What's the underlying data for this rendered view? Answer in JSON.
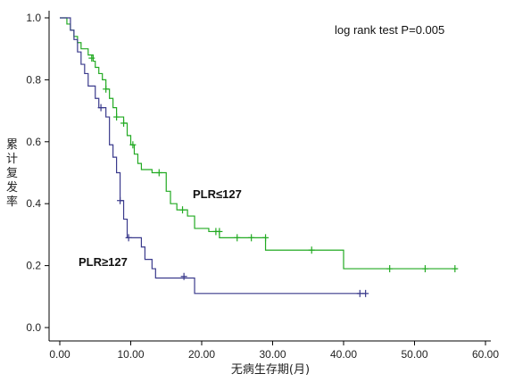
{
  "chart_data": {
    "type": "line",
    "subtype": "kaplan-meier step",
    "title": "",
    "xlabel": "无病生存期(月)",
    "ylabel": "累计复发率",
    "xlim": [
      0,
      60
    ],
    "ylim": [
      0,
      1.0
    ],
    "x_ticks": [
      "0.00",
      "10.00",
      "20.00",
      "30.00",
      "40.00",
      "50.00",
      "60.00"
    ],
    "y_ticks": [
      "0.0",
      "0.2",
      "0.4",
      "0.6",
      "0.8",
      "1.0"
    ],
    "grid": false,
    "annotation": "log rank test P=0.005",
    "series": [
      {
        "name": "PLR≤127",
        "color": "#22aa22",
        "label_text": "PLR≤127",
        "steps": [
          [
            0,
            1.0
          ],
          [
            1,
            0.98
          ],
          [
            1.5,
            0.96
          ],
          [
            2,
            0.94
          ],
          [
            2.5,
            0.92
          ],
          [
            3,
            0.9
          ],
          [
            4,
            0.88
          ],
          [
            4.7,
            0.86
          ],
          [
            5,
            0.84
          ],
          [
            5.5,
            0.82
          ],
          [
            6,
            0.8
          ],
          [
            6.5,
            0.77
          ],
          [
            7,
            0.74
          ],
          [
            7.5,
            0.71
          ],
          [
            8,
            0.68
          ],
          [
            9,
            0.66
          ],
          [
            9.5,
            0.62
          ],
          [
            10,
            0.59
          ],
          [
            10.5,
            0.56
          ],
          [
            11,
            0.53
          ],
          [
            11.5,
            0.51
          ],
          [
            13,
            0.5
          ],
          [
            15,
            0.44
          ],
          [
            15.6,
            0.4
          ],
          [
            16.5,
            0.38
          ],
          [
            18,
            0.36
          ],
          [
            19,
            0.32
          ],
          [
            21,
            0.31
          ],
          [
            22.5,
            0.29
          ],
          [
            29,
            0.25
          ],
          [
            40,
            0.19
          ],
          [
            56,
            0.19
          ]
        ],
        "censored": [
          [
            4.5,
            0.87
          ],
          [
            6.5,
            0.77
          ],
          [
            8,
            0.68
          ],
          [
            9,
            0.66
          ],
          [
            10.3,
            0.59
          ],
          [
            14,
            0.5
          ],
          [
            17.3,
            0.38
          ],
          [
            22,
            0.31
          ],
          [
            22.5,
            0.31
          ],
          [
            25,
            0.29
          ],
          [
            27,
            0.29
          ],
          [
            29,
            0.29
          ],
          [
            35.5,
            0.25
          ],
          [
            46.5,
            0.19
          ],
          [
            51.5,
            0.19
          ],
          [
            55.7,
            0.19
          ]
        ]
      },
      {
        "name": "PLR≥127",
        "color": "#3a3a8c",
        "label_text": "PLR≥127",
        "steps": [
          [
            0,
            1.0
          ],
          [
            1.5,
            0.96
          ],
          [
            2,
            0.93
          ],
          [
            2.5,
            0.89
          ],
          [
            3,
            0.85
          ],
          [
            3.5,
            0.82
          ],
          [
            4,
            0.78
          ],
          [
            5,
            0.74
          ],
          [
            5.5,
            0.71
          ],
          [
            6.5,
            0.68
          ],
          [
            7,
            0.59
          ],
          [
            7.5,
            0.55
          ],
          [
            8,
            0.5
          ],
          [
            8.5,
            0.41
          ],
          [
            9,
            0.35
          ],
          [
            9.5,
            0.29
          ],
          [
            11.5,
            0.26
          ],
          [
            12,
            0.22
          ],
          [
            13,
            0.19
          ],
          [
            13.5,
            0.16
          ],
          [
            19,
            0.11
          ],
          [
            43,
            0.11
          ]
        ],
        "censored": [
          [
            5.8,
            0.71
          ],
          [
            8.5,
            0.41
          ],
          [
            9.7,
            0.29
          ],
          [
            17.5,
            0.165
          ],
          [
            42.3,
            0.11
          ],
          [
            43.1,
            0.11
          ]
        ]
      }
    ]
  }
}
